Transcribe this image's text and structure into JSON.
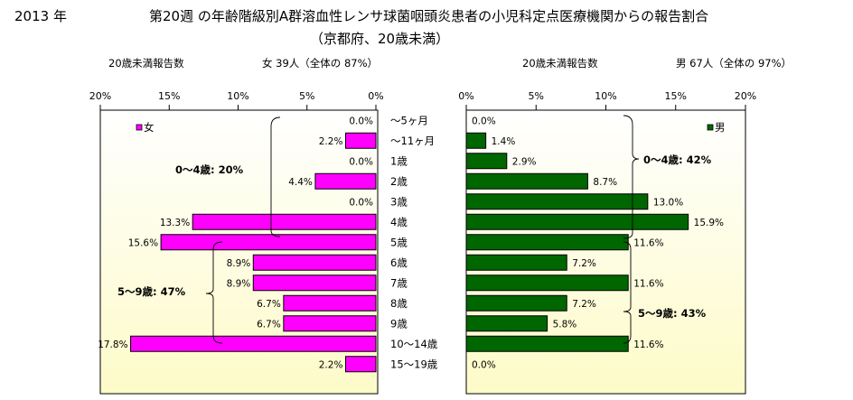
{
  "header": {
    "year": "2013 年",
    "title": "第20週 の年齢階級別A群溶血性レンサ球菌咽頭炎患者の小児科定点医療機関からの報告割合",
    "subtitle": "（京都府、20歳未満）",
    "left_label": "20歳未満報告数",
    "left_summary": "女  39人（全体の  87%）",
    "right_label": "20歳未満報告数",
    "right_summary": "男  67人（全体の  97%）"
  },
  "colors": {
    "female": "#ff00ff",
    "male": "#006600",
    "plot_bg_top": "#ffffff",
    "plot_bg_bottom": "#fdfbc8"
  },
  "chart_data": [
    {
      "type": "bar",
      "orientation": "horizontal",
      "direction": "right-to-left",
      "legend": "女",
      "legend_position": "top-left",
      "xlim": [
        0,
        20
      ],
      "xticks": [
        "20%",
        "15%",
        "10%",
        "5%",
        "0%"
      ],
      "categories": [
        "〜5ヶ月",
        "〜11ヶ月",
        "1歳",
        "2歳",
        "3歳",
        "4歳",
        "5歳",
        "6歳",
        "7歳",
        "8歳",
        "9歳",
        "10〜14歳",
        "15〜19歳"
      ],
      "values": [
        0.0,
        2.2,
        0.0,
        4.4,
        0.0,
        13.3,
        15.6,
        8.9,
        8.9,
        6.7,
        6.7,
        17.8,
        2.2
      ],
      "labels": [
        "0.0%",
        "2.2%",
        "0.0%",
        "4.4%",
        "0.0%",
        "13.3%",
        "15.6%",
        "8.9%",
        "8.9%",
        "6.7%",
        "6.7%",
        "17.8%",
        "2.2%"
      ],
      "annotations": [
        "0〜4歳: 20%",
        "5〜9歳: 47%"
      ]
    },
    {
      "type": "bar",
      "orientation": "horizontal",
      "direction": "left-to-right",
      "legend": "男",
      "legend_position": "top-right",
      "xlim": [
        0,
        20
      ],
      "xticks": [
        "0%",
        "5%",
        "10%",
        "15%",
        "20%"
      ],
      "categories": [
        "〜5ヶ月",
        "〜11ヶ月",
        "1歳",
        "2歳",
        "3歳",
        "4歳",
        "5歳",
        "6歳",
        "7歳",
        "8歳",
        "9歳",
        "10〜14歳",
        "15〜19歳"
      ],
      "values": [
        0.0,
        1.4,
        2.9,
        8.7,
        13.0,
        15.9,
        11.6,
        7.2,
        11.6,
        7.2,
        5.8,
        11.6,
        0.0
      ],
      "labels": [
        "0.0%",
        "1.4%",
        "2.9%",
        "8.7%",
        "13.0%",
        "15.9%",
        "11.6%",
        "7.2%",
        "11.6%",
        "7.2%",
        "5.8%",
        "11.6%",
        "0.0%"
      ],
      "annotations": [
        "0〜4歳: 42%",
        "5〜9歳: 43%"
      ]
    }
  ]
}
